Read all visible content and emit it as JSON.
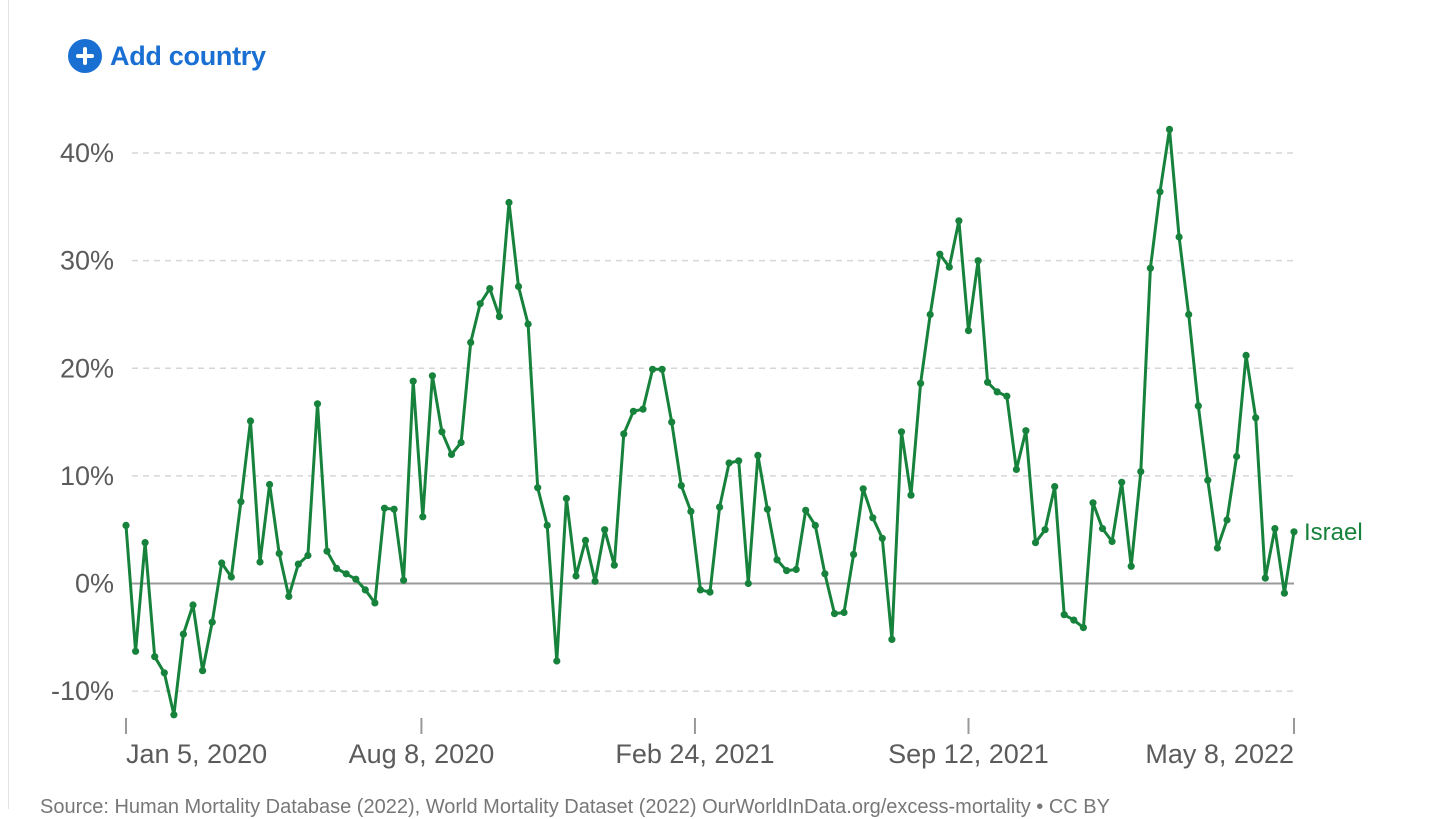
{
  "controls": {
    "add_country_label": "Add country",
    "add_icon": "plus-circle-icon"
  },
  "colors": {
    "series": "#17823c",
    "accent": "#1a6fd3",
    "grid": "#d6d6d6",
    "zero_line": "#9a9a9a",
    "text": "#5b5b5b"
  },
  "chart_data": {
    "type": "line",
    "title": "",
    "xlabel": "",
    "ylabel": "",
    "ylim": [
      -12.5,
      44
    ],
    "y_ticks": [
      -10,
      0,
      10,
      20,
      30,
      40
    ],
    "y_tick_labels": [
      "-10%",
      "0%",
      "10%",
      "20%",
      "30%",
      "40%"
    ],
    "x_ticks": [
      {
        "date": "2020-01-05",
        "label": "Jan 5, 2020"
      },
      {
        "date": "2020-08-08",
        "label": "Aug 8, 2020"
      },
      {
        "date": "2021-02-24",
        "label": "Feb 24, 2021"
      },
      {
        "date": "2021-09-12",
        "label": "Sep 12, 2021"
      },
      {
        "date": "2022-05-08",
        "label": "May 8, 2022"
      }
    ],
    "grid": true,
    "legend": "inline-right",
    "series": [
      {
        "name": "Israel",
        "points": [
          {
            "x": "2020-01-05",
            "y": 5.4
          },
          {
            "x": "2020-01-12",
            "y": -6.3
          },
          {
            "x": "2020-01-19",
            "y": 3.8
          },
          {
            "x": "2020-01-26",
            "y": -6.8
          },
          {
            "x": "2020-02-02",
            "y": -8.3
          },
          {
            "x": "2020-02-09",
            "y": -12.2
          },
          {
            "x": "2020-02-16",
            "y": -4.7
          },
          {
            "x": "2020-02-23",
            "y": -2
          },
          {
            "x": "2020-03-01",
            "y": -8.1
          },
          {
            "x": "2020-03-08",
            "y": -3.6
          },
          {
            "x": "2020-03-15",
            "y": 1.9
          },
          {
            "x": "2020-03-22",
            "y": 0.6
          },
          {
            "x": "2020-03-29",
            "y": 7.6
          },
          {
            "x": "2020-04-05",
            "y": 15.1
          },
          {
            "x": "2020-04-12",
            "y": 2
          },
          {
            "x": "2020-04-19",
            "y": 9.2
          },
          {
            "x": "2020-04-26",
            "y": 2.8
          },
          {
            "x": "2020-05-03",
            "y": -1.2
          },
          {
            "x": "2020-05-10",
            "y": 1.8
          },
          {
            "x": "2020-05-17",
            "y": 2.6
          },
          {
            "x": "2020-05-24",
            "y": 16.7
          },
          {
            "x": "2020-05-31",
            "y": 3
          },
          {
            "x": "2020-06-07",
            "y": 1.4
          },
          {
            "x": "2020-06-14",
            "y": 0.9
          },
          {
            "x": "2020-06-21",
            "y": 0.4
          },
          {
            "x": "2020-06-28",
            "y": -0.6
          },
          {
            "x": "2020-07-05",
            "y": -1.8
          },
          {
            "x": "2020-07-12",
            "y": 7
          },
          {
            "x": "2020-07-19",
            "y": 6.9
          },
          {
            "x": "2020-07-26",
            "y": 0.3
          },
          {
            "x": "2020-08-02",
            "y": 18.8
          },
          {
            "x": "2020-08-09",
            "y": 6.2
          },
          {
            "x": "2020-08-16",
            "y": 19.3
          },
          {
            "x": "2020-08-23",
            "y": 14.1
          },
          {
            "x": "2020-08-30",
            "y": 12
          },
          {
            "x": "2020-09-06",
            "y": 13.1
          },
          {
            "x": "2020-09-13",
            "y": 22.4
          },
          {
            "x": "2020-09-20",
            "y": 26
          },
          {
            "x": "2020-09-27",
            "y": 27.4
          },
          {
            "x": "2020-10-04",
            "y": 24.8
          },
          {
            "x": "2020-10-11",
            "y": 35.4
          },
          {
            "x": "2020-10-18",
            "y": 27.6
          },
          {
            "x": "2020-10-25",
            "y": 24.1
          },
          {
            "x": "2020-11-01",
            "y": 8.9
          },
          {
            "x": "2020-11-08",
            "y": 5.4
          },
          {
            "x": "2020-11-15",
            "y": -7.2
          },
          {
            "x": "2020-11-22",
            "y": 7.9
          },
          {
            "x": "2020-11-29",
            "y": 0.7
          },
          {
            "x": "2020-12-06",
            "y": 4
          },
          {
            "x": "2020-12-13",
            "y": 0.2
          },
          {
            "x": "2020-12-20",
            "y": 5
          },
          {
            "x": "2020-12-27",
            "y": 1.7
          },
          {
            "x": "2021-01-03",
            "y": 13.9
          },
          {
            "x": "2021-01-10",
            "y": 16
          },
          {
            "x": "2021-01-17",
            "y": 16.2
          },
          {
            "x": "2021-01-24",
            "y": 19.9
          },
          {
            "x": "2021-01-31",
            "y": 19.9
          },
          {
            "x": "2021-02-07",
            "y": 15
          },
          {
            "x": "2021-02-14",
            "y": 9.1
          },
          {
            "x": "2021-02-21",
            "y": 6.7
          },
          {
            "x": "2021-02-28",
            "y": -0.6
          },
          {
            "x": "2021-03-07",
            "y": -0.8
          },
          {
            "x": "2021-03-14",
            "y": 7.1
          },
          {
            "x": "2021-03-21",
            "y": 11.2
          },
          {
            "x": "2021-03-28",
            "y": 11.4
          },
          {
            "x": "2021-04-04",
            "y": 0
          },
          {
            "x": "2021-04-11",
            "y": 11.9
          },
          {
            "x": "2021-04-18",
            "y": 6.9
          },
          {
            "x": "2021-04-25",
            "y": 2.2
          },
          {
            "x": "2021-05-02",
            "y": 1.2
          },
          {
            "x": "2021-05-09",
            "y": 1.3
          },
          {
            "x": "2021-05-16",
            "y": 6.8
          },
          {
            "x": "2021-05-23",
            "y": 5.4
          },
          {
            "x": "2021-05-30",
            "y": 0.9
          },
          {
            "x": "2021-06-06",
            "y": -2.8
          },
          {
            "x": "2021-06-13",
            "y": -2.7
          },
          {
            "x": "2021-06-20",
            "y": 2.7
          },
          {
            "x": "2021-06-27",
            "y": 8.8
          },
          {
            "x": "2021-07-04",
            "y": 6.1
          },
          {
            "x": "2021-07-11",
            "y": 4.2
          },
          {
            "x": "2021-07-18",
            "y": -5.2
          },
          {
            "x": "2021-07-25",
            "y": 14.1
          },
          {
            "x": "2021-08-01",
            "y": 8.2
          },
          {
            "x": "2021-08-08",
            "y": 18.6
          },
          {
            "x": "2021-08-15",
            "y": 25
          },
          {
            "x": "2021-08-22",
            "y": 30.6
          },
          {
            "x": "2021-08-29",
            "y": 29.4
          },
          {
            "x": "2021-09-05",
            "y": 33.7
          },
          {
            "x": "2021-09-12",
            "y": 23.5
          },
          {
            "x": "2021-09-19",
            "y": 30
          },
          {
            "x": "2021-09-26",
            "y": 18.7
          },
          {
            "x": "2021-10-03",
            "y": 17.8
          },
          {
            "x": "2021-10-10",
            "y": 17.4
          },
          {
            "x": "2021-10-17",
            "y": 10.6
          },
          {
            "x": "2021-10-24",
            "y": 14.2
          },
          {
            "x": "2021-10-31",
            "y": 3.8
          },
          {
            "x": "2021-11-07",
            "y": 5
          },
          {
            "x": "2021-11-14",
            "y": 9
          },
          {
            "x": "2021-11-21",
            "y": -2.9
          },
          {
            "x": "2021-11-28",
            "y": -3.4
          },
          {
            "x": "2021-12-05",
            "y": -4.1
          },
          {
            "x": "2021-12-12",
            "y": 7.5
          },
          {
            "x": "2021-12-19",
            "y": 5.1
          },
          {
            "x": "2021-12-26",
            "y": 3.9
          },
          {
            "x": "2022-01-02",
            "y": 9.4
          },
          {
            "x": "2022-01-09",
            "y": 1.6
          },
          {
            "x": "2022-01-16",
            "y": 10.4
          },
          {
            "x": "2022-01-23",
            "y": 29.3
          },
          {
            "x": "2022-01-30",
            "y": 36.4
          },
          {
            "x": "2022-02-06",
            "y": 42.2
          },
          {
            "x": "2022-02-13",
            "y": 32.2
          },
          {
            "x": "2022-02-20",
            "y": 25
          },
          {
            "x": "2022-02-27",
            "y": 16.5
          },
          {
            "x": "2022-03-06",
            "y": 9.6
          },
          {
            "x": "2022-03-13",
            "y": 3.3
          },
          {
            "x": "2022-03-20",
            "y": 5.9
          },
          {
            "x": "2022-03-27",
            "y": 11.8
          },
          {
            "x": "2022-04-03",
            "y": 21.2
          },
          {
            "x": "2022-04-10",
            "y": 15.4
          },
          {
            "x": "2022-04-17",
            "y": 0.5
          },
          {
            "x": "2022-04-24",
            "y": 5.1
          },
          {
            "x": "2022-05-01",
            "y": -0.9
          },
          {
            "x": "2022-05-08",
            "y": 4.8
          }
        ]
      }
    ]
  },
  "footer": {
    "source_text": "Source: Human Mortality Database (2022), World Mortality Dataset (2022)                          OurWorldInData.org/excess-mortality • CC BY"
  }
}
